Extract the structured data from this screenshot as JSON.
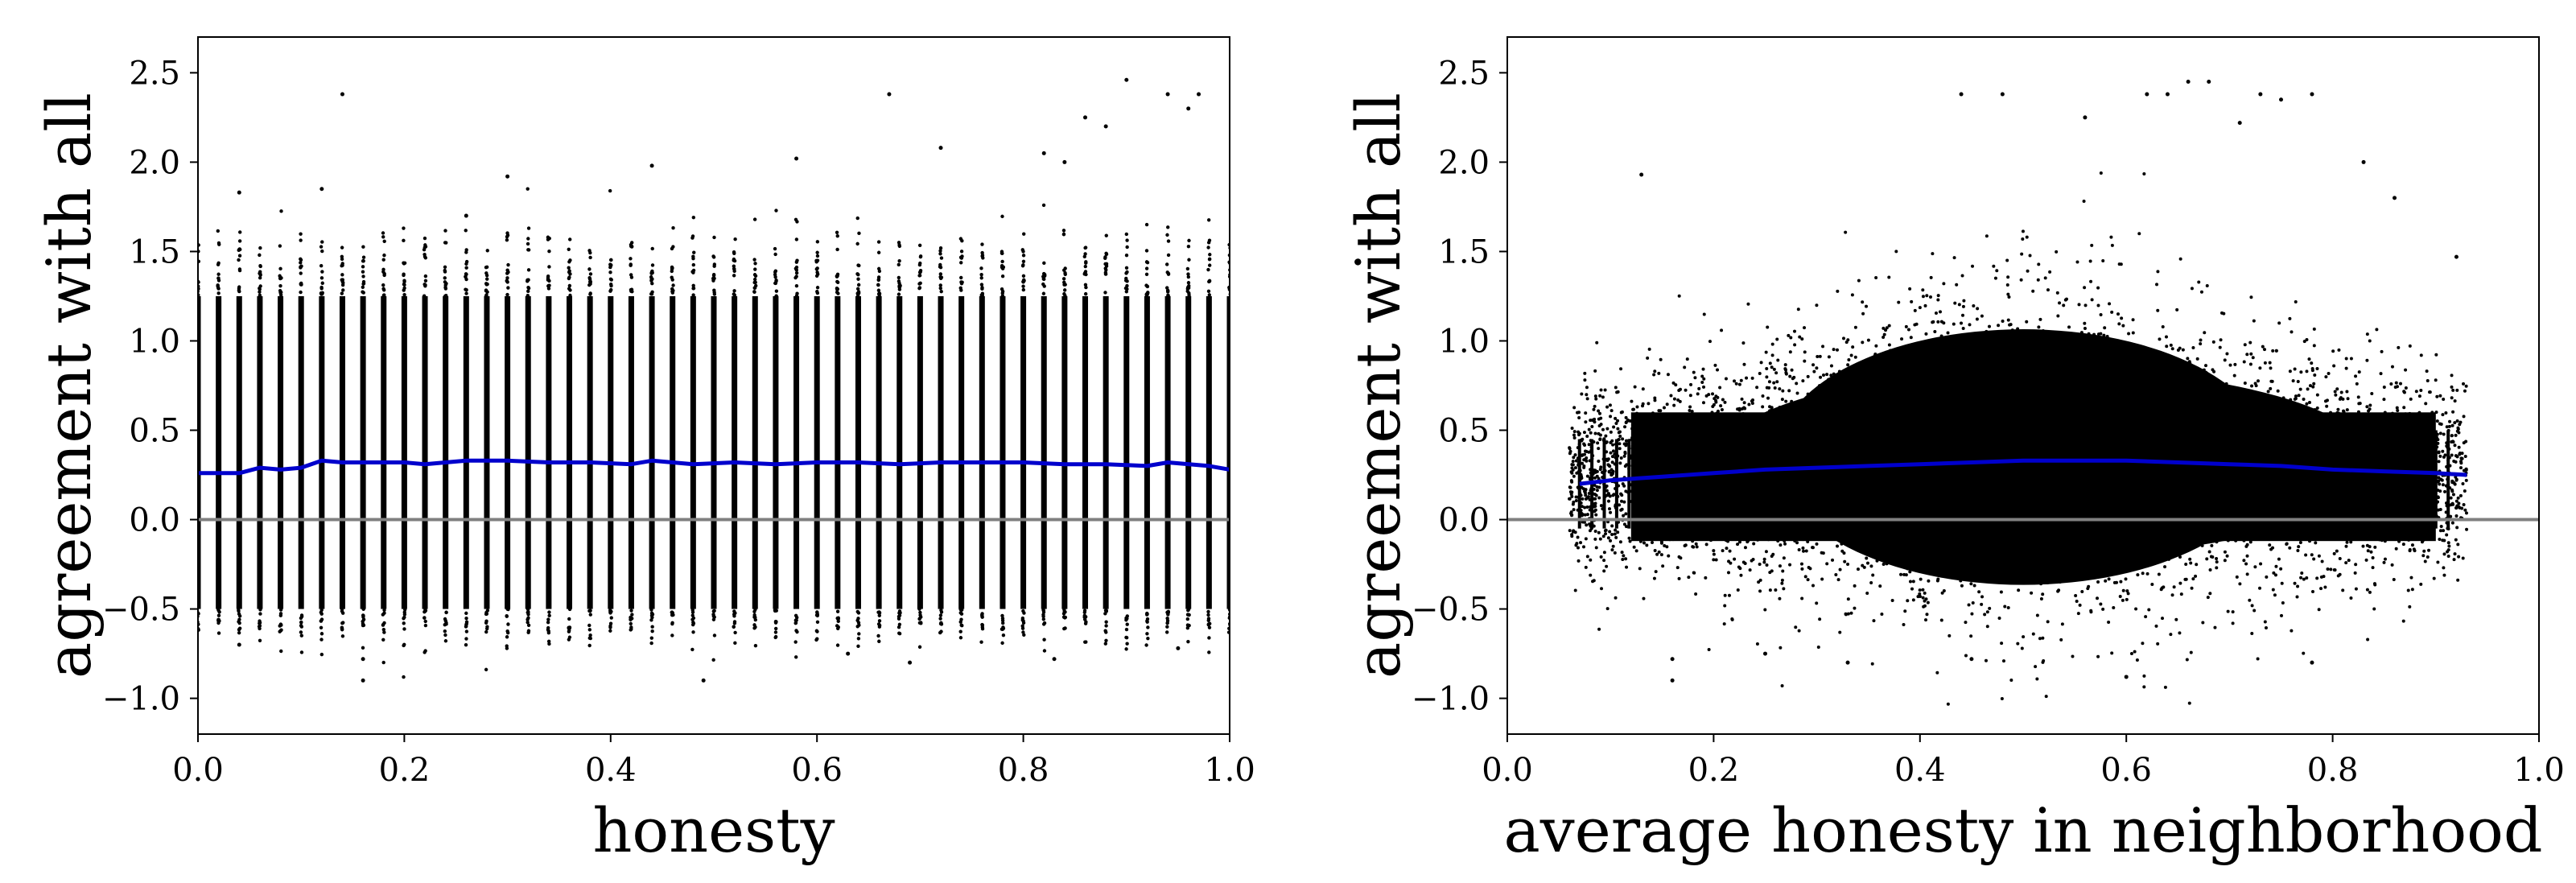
{
  "chart_data": [
    {
      "type": "scatter",
      "title": "",
      "xlabel": "honesty",
      "ylabel": "agreement with all",
      "xlim": [
        0.0,
        1.0
      ],
      "ylim": [
        -1.2,
        2.7
      ],
      "xticks": [
        0.0,
        0.2,
        0.4,
        0.6,
        0.8,
        1.0
      ],
      "xtick_labels": [
        "0.0",
        "0.2",
        "0.4",
        "0.6",
        "0.8",
        "1.0"
      ],
      "yticks": [
        -1.0,
        -0.5,
        0.0,
        0.5,
        1.0,
        1.5,
        2.0,
        2.5
      ],
      "ytick_labels": [
        "−1.0",
        "−0.5",
        "0.0",
        "0.5",
        "1.0",
        "1.5",
        "2.0",
        "2.5"
      ],
      "reference_line": {
        "y": 0.0,
        "color": "#808080"
      },
      "point_color": "#000000",
      "scatter_columns": {
        "x": [
          0.0,
          0.02,
          0.04,
          0.06,
          0.08,
          0.1,
          0.12,
          0.14,
          0.16,
          0.18,
          0.2,
          0.22,
          0.24,
          0.26,
          0.28,
          0.3,
          0.32,
          0.34,
          0.36,
          0.38,
          0.4,
          0.42,
          0.44,
          0.46,
          0.48,
          0.5,
          0.52,
          0.54,
          0.56,
          0.58,
          0.6,
          0.62,
          0.64,
          0.66,
          0.68,
          0.7,
          0.72,
          0.74,
          0.76,
          0.78,
          0.8,
          0.82,
          0.84,
          0.86,
          0.88,
          0.9,
          0.92,
          0.94,
          0.96,
          0.98,
          1.0
        ],
        "dense_low": -0.5,
        "dense_high": 1.25
      },
      "outliers": [
        [
          0.14,
          2.38
        ],
        [
          0.67,
          2.38
        ],
        [
          0.9,
          2.46
        ],
        [
          0.72,
          2.08
        ],
        [
          0.94,
          2.38
        ],
        [
          0.97,
          2.38
        ],
        [
          0.96,
          2.3
        ],
        [
          0.86,
          2.25
        ],
        [
          0.88,
          2.2
        ],
        [
          0.82,
          2.05
        ],
        [
          0.84,
          2.0
        ],
        [
          0.44,
          1.98
        ],
        [
          0.3,
          1.92
        ],
        [
          0.12,
          1.85
        ],
        [
          0.04,
          1.83
        ],
        [
          0.26,
          1.7
        ],
        [
          0.58,
          2.02
        ],
        [
          0.16,
          -0.9
        ],
        [
          0.49,
          -0.9
        ],
        [
          0.16,
          -0.78
        ],
        [
          0.83,
          -0.78
        ],
        [
          0.04,
          -0.7
        ],
        [
          0.69,
          -0.8
        ],
        [
          0.95,
          -0.72
        ],
        [
          0.63,
          -0.75
        ]
      ],
      "series": [
        {
          "name": "trend",
          "color": "#0000cc",
          "x": [
            0.0,
            0.04,
            0.06,
            0.08,
            0.1,
            0.12,
            0.14,
            0.2,
            0.22,
            0.26,
            0.3,
            0.34,
            0.38,
            0.42,
            0.44,
            0.48,
            0.52,
            0.56,
            0.6,
            0.64,
            0.68,
            0.72,
            0.76,
            0.8,
            0.84,
            0.88,
            0.92,
            0.94,
            0.98,
            1.0
          ],
          "y": [
            0.26,
            0.26,
            0.29,
            0.28,
            0.29,
            0.33,
            0.32,
            0.32,
            0.31,
            0.33,
            0.33,
            0.32,
            0.32,
            0.31,
            0.33,
            0.31,
            0.32,
            0.31,
            0.32,
            0.32,
            0.31,
            0.32,
            0.32,
            0.32,
            0.31,
            0.31,
            0.3,
            0.32,
            0.3,
            0.28
          ]
        }
      ]
    },
    {
      "type": "scatter",
      "title": "",
      "xlabel": "average honesty in neighborhood",
      "ylabel": "agreement with all",
      "xlim": [
        0.0,
        1.0
      ],
      "ylim": [
        -1.2,
        2.7
      ],
      "xticks": [
        0.0,
        0.2,
        0.4,
        0.6,
        0.8,
        1.0
      ],
      "xtick_labels": [
        "0.0",
        "0.2",
        "0.4",
        "0.6",
        "0.8",
        "1.0"
      ],
      "yticks": [
        -1.0,
        -0.5,
        0.0,
        0.5,
        1.0,
        1.5,
        2.0,
        2.5
      ],
      "ytick_labels": [
        "−1.0",
        "−0.5",
        "0.0",
        "0.5",
        "1.0",
        "1.5",
        "2.0",
        "2.5"
      ],
      "reference_line": {
        "y": 0.0,
        "color": "#808080"
      },
      "point_color": "#000000",
      "scatter_cloud": {
        "x_range": [
          0.06,
          0.93
        ],
        "center_x": 0.5,
        "center_y": 0.3,
        "y_spread_at_center": [
          -0.45,
          1.15
        ],
        "y_spread_at_edges": [
          -0.15,
          0.6
        ]
      },
      "outliers": [
        [
          0.56,
          2.25
        ],
        [
          0.64,
          2.38
        ],
        [
          0.66,
          2.45
        ],
        [
          0.68,
          2.45
        ],
        [
          0.73,
          2.38
        ],
        [
          0.75,
          2.35
        ],
        [
          0.78,
          2.38
        ],
        [
          0.44,
          2.38
        ],
        [
          0.48,
          2.38
        ],
        [
          0.62,
          2.38
        ],
        [
          0.71,
          2.22
        ],
        [
          0.13,
          1.93
        ],
        [
          0.83,
          2.0
        ],
        [
          0.86,
          1.8
        ],
        [
          0.92,
          1.47
        ],
        [
          0.16,
          -0.78
        ],
        [
          0.16,
          -0.9
        ],
        [
          0.25,
          -0.75
        ],
        [
          0.33,
          -0.8
        ],
        [
          0.6,
          -0.88
        ],
        [
          0.78,
          -0.8
        ],
        [
          0.45,
          -0.78
        ]
      ],
      "series": [
        {
          "name": "trend",
          "color": "#0000cc",
          "x": [
            0.07,
            0.1,
            0.15,
            0.2,
            0.25,
            0.3,
            0.35,
            0.4,
            0.45,
            0.5,
            0.55,
            0.6,
            0.65,
            0.7,
            0.75,
            0.8,
            0.85,
            0.9,
            0.93
          ],
          "y": [
            0.2,
            0.22,
            0.24,
            0.26,
            0.28,
            0.29,
            0.3,
            0.31,
            0.32,
            0.33,
            0.33,
            0.33,
            0.32,
            0.31,
            0.3,
            0.28,
            0.27,
            0.26,
            0.25
          ]
        }
      ]
    }
  ]
}
